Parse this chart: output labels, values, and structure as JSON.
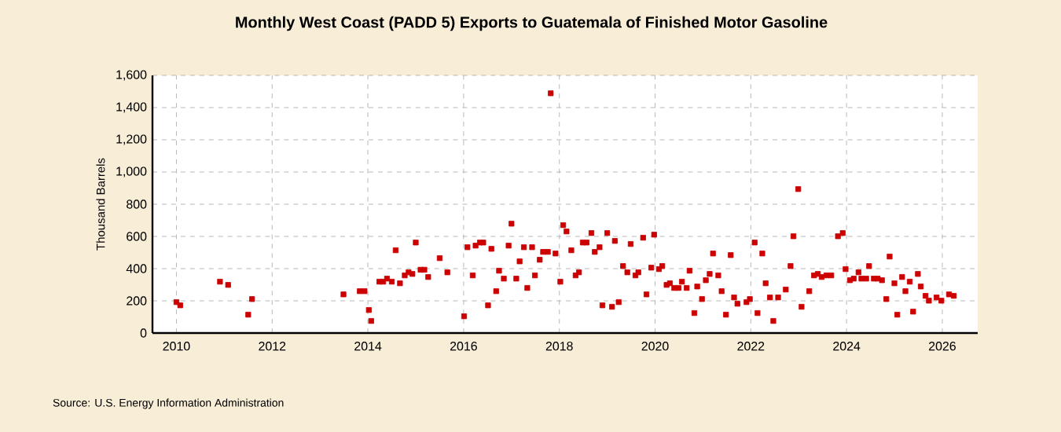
{
  "chart_data": {
    "type": "scatter",
    "title": "Monthly West Coast (PADD 5) Exports to Guatemala of Finished Motor Gasoline",
    "ylabel": "Thousand Barrels",
    "annotations": [
      "Source: U.S. Energy Information Administration"
    ],
    "marker": "square",
    "grid": true,
    "xlim": [
      2009.5,
      2026.74
    ],
    "ylim": [
      0,
      1600
    ],
    "xticks": [
      2010,
      2012,
      2014,
      2016,
      2018,
      2020,
      2022,
      2024,
      2026
    ],
    "yticks": [
      {
        "value": 0,
        "label": "0"
      },
      {
        "value": 200,
        "label": "200"
      },
      {
        "value": 400,
        "label": "400"
      },
      {
        "value": 600,
        "label": "600"
      },
      {
        "value": 800,
        "label": "800"
      },
      {
        "value": 1000,
        "label": "1,000"
      },
      {
        "value": 1200,
        "label": "1,200"
      },
      {
        "value": 1400,
        "label": "1,400"
      },
      {
        "value": 1600,
        "label": "1,600"
      }
    ],
    "series": [
      {
        "color": "#cc0000",
        "x": [
          2010.0,
          2010.08,
          2010.91,
          2011.08,
          2011.5,
          2011.58,
          2013.49,
          2013.83,
          2013.93,
          2014.02,
          2014.07,
          2014.24,
          2014.32,
          2014.4,
          2014.5,
          2014.58,
          2014.67,
          2014.77,
          2014.85,
          2014.93,
          2015.0,
          2015.1,
          2015.18,
          2015.26,
          2015.5,
          2015.66,
          2016.01,
          2016.08,
          2016.19,
          2016.25,
          2016.34,
          2016.41,
          2016.51,
          2016.58,
          2016.68,
          2016.74,
          2016.84,
          2016.94,
          2017.0,
          2017.1,
          2017.17,
          2017.26,
          2017.33,
          2017.43,
          2017.49,
          2017.59,
          2017.66,
          2017.76,
          2017.82,
          2017.92,
          2018.02,
          2018.08,
          2018.15,
          2018.25,
          2018.34,
          2018.41,
          2018.49,
          2018.57,
          2018.67,
          2018.74,
          2018.84,
          2018.9,
          2019.0,
          2019.1,
          2019.16,
          2019.24,
          2019.33,
          2019.42,
          2019.49,
          2019.59,
          2019.65,
          2019.75,
          2019.82,
          2019.92,
          2019.98,
          2020.08,
          2020.15,
          2020.24,
          2020.31,
          2020.4,
          2020.49,
          2020.56,
          2020.66,
          2020.72,
          2020.82,
          2020.88,
          2020.98,
          2021.06,
          2021.14,
          2021.21,
          2021.32,
          2021.39,
          2021.48,
          2021.58,
          2021.65,
          2021.72,
          2021.91,
          2021.98,
          2022.08,
          2022.14,
          2022.24,
          2022.31,
          2022.4,
          2022.47,
          2022.57,
          2022.73,
          2022.83,
          2022.89,
          2022.99,
          2023.06,
          2023.22,
          2023.32,
          2023.4,
          2023.48,
          2023.58,
          2023.68,
          2023.82,
          2023.92,
          2023.98,
          2024.07,
          2024.15,
          2024.25,
          2024.31,
          2024.41,
          2024.47,
          2024.57,
          2024.65,
          2024.74,
          2024.83,
          2024.9,
          2025.0,
          2025.06,
          2025.16,
          2025.23,
          2025.32,
          2025.39,
          2025.49,
          2025.55,
          2025.65,
          2025.72,
          2025.88,
          2025.98,
          2026.14,
          2026.24
        ],
        "values": [
          192,
          172,
          319,
          299,
          114,
          211,
          240,
          260,
          260,
          143,
          75,
          319,
          319,
          338,
          319,
          514,
          309,
          358,
          377,
          367,
          562,
          393,
          393,
          348,
          465,
          377,
          104,
          533,
          358,
          543,
          562,
          562,
          172,
          523,
          260,
          387,
          338,
          543,
          679,
          338,
          445,
          533,
          280,
          533,
          358,
          455,
          504,
          504,
          1489,
          494,
          319,
          670,
          631,
          514,
          358,
          377,
          562,
          562,
          621,
          504,
          533,
          172,
          621,
          163,
          572,
          192,
          416,
          377,
          553,
          358,
          377,
          592,
          240,
          406,
          611,
          397,
          416,
          299,
          309,
          280,
          280,
          319,
          280,
          387,
          124,
          289,
          211,
          328,
          367,
          494,
          358,
          260,
          114,
          484,
          221,
          182,
          192,
          211,
          562,
          124,
          494,
          309,
          221,
          75,
          221,
          270,
          416,
          601,
          894,
          163,
          260,
          358,
          367,
          348,
          358,
          358,
          601,
          621,
          397,
          328,
          338,
          377,
          338,
          338,
          416,
          338,
          338,
          328,
          211,
          475,
          309,
          114,
          348,
          260,
          319,
          133,
          367,
          289,
          231,
          201,
          221,
          201,
          240,
          231
        ]
      }
    ]
  }
}
